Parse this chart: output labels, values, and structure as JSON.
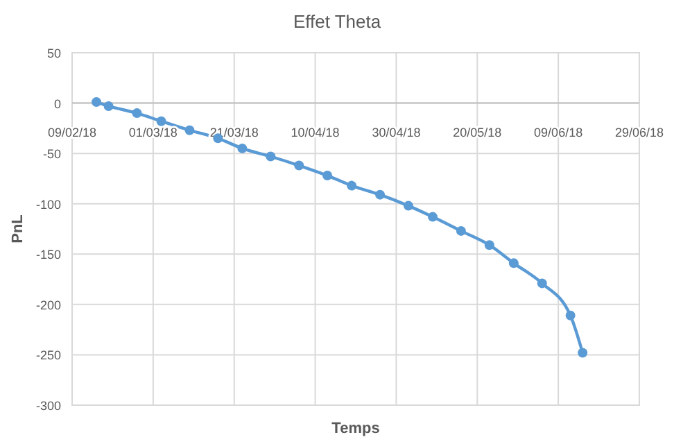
{
  "chart_data": {
    "type": "line",
    "title": "Effet Theta",
    "xlabel": "Temps",
    "ylabel": "PnL",
    "x": [
      "2018-02-15",
      "2018-02-18",
      "2018-02-25",
      "2018-03-03",
      "2018-03-10",
      "2018-03-17",
      "2018-03-23",
      "2018-03-30",
      "2018-04-06",
      "2018-04-13",
      "2018-04-19",
      "2018-04-26",
      "2018-05-03",
      "2018-05-09",
      "2018-05-16",
      "2018-05-23",
      "2018-05-29",
      "2018-06-05",
      "2018-06-12",
      "2018-06-15"
    ],
    "series": [
      {
        "color": "#5b9bd5",
        "values": [
          1,
          -3,
          -10,
          -18,
          -27,
          -35,
          -45,
          -53,
          -62,
          -72,
          -82,
          -91,
          -102,
          -113,
          -127,
          -141,
          -159,
          -179,
          -211,
          -248
        ]
      }
    ],
    "xlim": [
      "2018-02-09",
      "2018-06-29"
    ],
    "xticks": [
      {
        "value": "2018-02-09",
        "label": "09/02/18"
      },
      {
        "value": "2018-03-01",
        "label": "01/03/18"
      },
      {
        "value": "2018-03-21",
        "label": "21/03/18"
      },
      {
        "value": "2018-04-10",
        "label": "10/04/18"
      },
      {
        "value": "2018-04-30",
        "label": "30/04/18"
      },
      {
        "value": "2018-05-20",
        "label": "20/05/18"
      },
      {
        "value": "2018-06-09",
        "label": "09/06/18"
      },
      {
        "value": "2018-06-29",
        "label": "29/06/18"
      }
    ],
    "ylim": [
      -300,
      50
    ],
    "yticks": [
      -300,
      -250,
      -200,
      -150,
      -100,
      -50,
      0,
      50
    ],
    "grid": true,
    "marker": "circle",
    "line_style": "solid"
  }
}
